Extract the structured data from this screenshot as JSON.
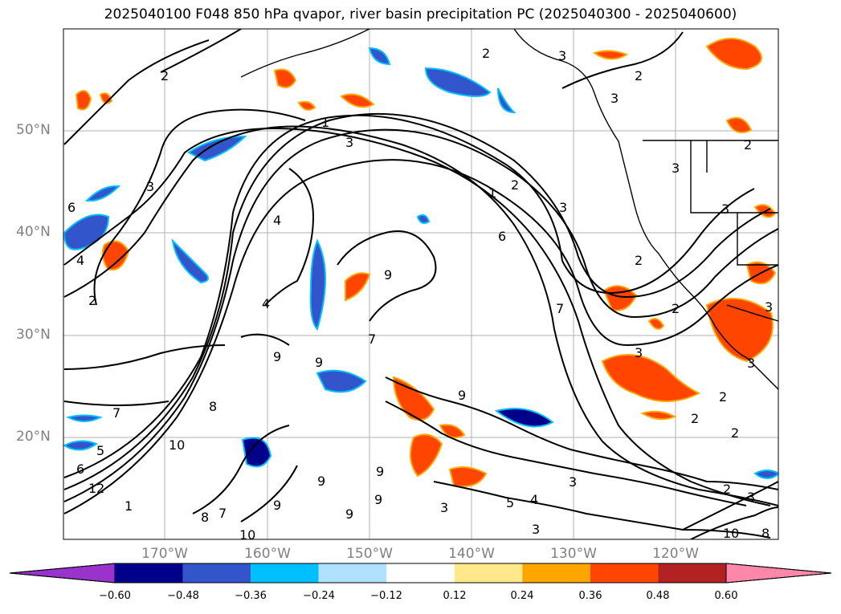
{
  "title": "2025040100 F048 850 hPa qvapor, river basin precipitation PC (2025040300 - 2025040600)",
  "axes": {
    "lat_labels": [
      "50°N",
      "40°N",
      "30°N",
      "20°N"
    ],
    "lon_labels": [
      "170°W",
      "160°W",
      "150°W",
      "140°W",
      "130°W",
      "120°W"
    ]
  },
  "map": {
    "extent": {
      "lon_min": -180,
      "lon_max": -110,
      "lat_min": 10,
      "lat_max": 60
    },
    "gridlines": true,
    "contour_variable": "850 hPa qvapor",
    "contour_labels": [
      "1",
      "2",
      "3",
      "4",
      "5",
      "6",
      "7",
      "8",
      "9",
      "10",
      "12"
    ],
    "colors": {
      "land_outline": "#000000",
      "contour": "#000000",
      "gridline": "#b0b0b0"
    }
  },
  "colorbar": {
    "tick_labels": [
      "−0.60",
      "−0.48",
      "−0.36",
      "−0.24",
      "−0.12",
      "0.12",
      "0.24",
      "0.36",
      "0.48",
      "0.60"
    ],
    "bins": [
      {
        "range": "< -0.60",
        "color": "#9933cc"
      },
      {
        "range": "-0.60 to -0.48",
        "color": "#00008b"
      },
      {
        "range": "-0.48 to -0.36",
        "color": "#3355cc"
      },
      {
        "range": "-0.36 to -0.24",
        "color": "#00bfff"
      },
      {
        "range": "-0.24 to -0.12",
        "color": "#b0e2ff"
      },
      {
        "range": "-0.12 to 0.12",
        "color": "#ffffff"
      },
      {
        "range": "0.12 to 0.24",
        "color": "#ffe98a"
      },
      {
        "range": "0.24 to 0.36",
        "color": "#ffa500"
      },
      {
        "range": "0.36 to 0.48",
        "color": "#ff4500"
      },
      {
        "range": "0.48 to 0.60",
        "color": "#b22222"
      },
      {
        "range": "> 0.60",
        "color": "#ff88aa"
      }
    ]
  }
}
